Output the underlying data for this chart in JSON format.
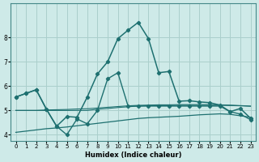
{
  "xlabel": "Humidex (Indice chaleur)",
  "xlim": [
    -0.5,
    23.5
  ],
  "ylim": [
    3.75,
    9.4
  ],
  "yticks": [
    4,
    5,
    6,
    7,
    8
  ],
  "xticks": [
    0,
    1,
    2,
    3,
    4,
    5,
    6,
    7,
    8,
    9,
    10,
    11,
    12,
    13,
    14,
    15,
    16,
    17,
    18,
    19,
    20,
    21,
    22,
    23
  ],
  "bg_color": "#ceeae8",
  "grid_color": "#aacfcc",
  "line_color": "#1e7070",
  "line_main": [
    5.55,
    5.7,
    5.85,
    5.05,
    4.35,
    4.75,
    4.72,
    5.55,
    6.5,
    7.0,
    7.95,
    8.3,
    8.62,
    7.95,
    6.55,
    6.6,
    5.38,
    5.4,
    5.35,
    5.32,
    5.22,
    4.95,
    5.08,
    4.68
  ],
  "line_flat1": [
    5.0,
    5.0,
    5.0,
    5.0,
    5.0,
    5.0,
    5.0,
    5.0,
    5.05,
    5.08,
    5.12,
    5.15,
    5.18,
    5.2,
    5.2,
    5.2,
    5.21,
    5.21,
    5.21,
    5.21,
    5.21,
    5.2,
    5.19,
    5.17
  ],
  "line_flat2": [
    5.0,
    5.0,
    5.0,
    5.02,
    5.03,
    5.04,
    5.06,
    5.07,
    5.1,
    5.13,
    5.16,
    5.19,
    5.21,
    5.22,
    5.23,
    5.23,
    5.24,
    5.24,
    5.24,
    5.24,
    5.23,
    5.22,
    5.2,
    5.18
  ],
  "line_slow": [
    5.55,
    5.7,
    5.85,
    5.05,
    4.35,
    4.0,
    4.65,
    4.45,
    5.0,
    6.3,
    6.55,
    5.18,
    5.18,
    5.18,
    5.18,
    5.18,
    5.18,
    5.18,
    5.18,
    5.18,
    5.18,
    4.95,
    4.85,
    4.62
  ],
  "line_low": [
    4.1,
    4.15,
    4.2,
    4.25,
    4.28,
    4.32,
    4.37,
    4.42,
    4.47,
    4.52,
    4.57,
    4.62,
    4.67,
    4.7,
    4.72,
    4.74,
    4.76,
    4.79,
    4.82,
    4.84,
    4.86,
    4.84,
    4.78,
    4.72
  ]
}
